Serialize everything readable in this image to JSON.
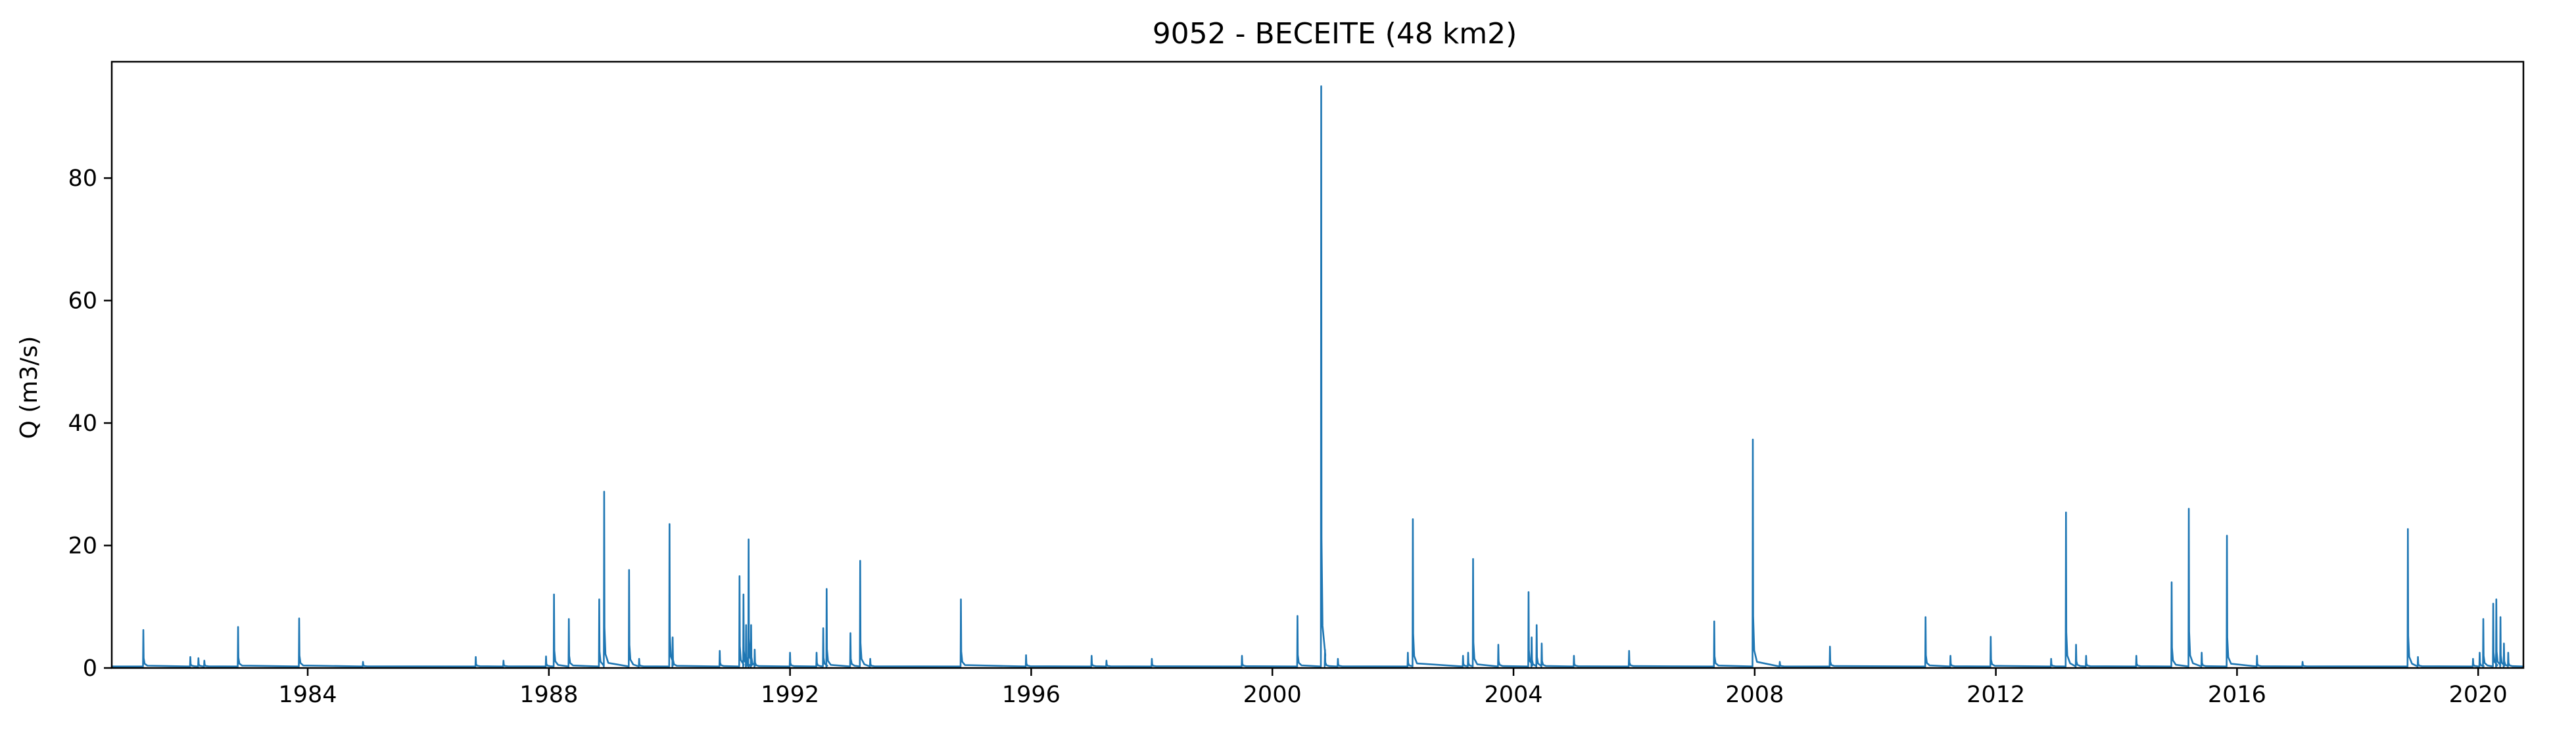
{
  "chart_data": {
    "type": "line",
    "title": "9052 - BECEITE (48 km2)",
    "xlabel": "",
    "ylabel": "Q (m3/s)",
    "xlim": [
      "1980-10-01",
      "2020-10-01"
    ],
    "ylim": [
      0,
      99
    ],
    "grid": false,
    "legend": "none",
    "x_ticks": [
      "1984",
      "1988",
      "1992",
      "1996",
      "2000",
      "2004",
      "2008",
      "2012",
      "2016",
      "2020"
    ],
    "y_ticks": [
      0,
      20,
      40,
      60,
      80
    ],
    "series_color": "#1f77b4",
    "series": [
      {
        "baseflow": 0.25,
        "peaks": [
          [
            "1981-04-10",
            6.2
          ],
          [
            "1982-01-20",
            1.8
          ],
          [
            "1982-03-10",
            1.6
          ],
          [
            "1982-04-15",
            1.2
          ],
          [
            "1982-11-05",
            6.7
          ],
          [
            "1983-11-10",
            8.1
          ],
          [
            "1984-12-01",
            1.0
          ],
          [
            "1986-10-15",
            1.8
          ],
          [
            "1987-04-01",
            1.2
          ],
          [
            "1987-12-15",
            1.9
          ],
          [
            "1988-02-01",
            12.0
          ],
          [
            "1988-05-01",
            8.0
          ],
          [
            "1988-11-01",
            11.2
          ],
          [
            "1988-12-01",
            28.8
          ],
          [
            "1989-05-01",
            16.0
          ],
          [
            "1989-07-01",
            1.5
          ],
          [
            "1990-01-01",
            23.5
          ],
          [
            "1990-01-20",
            5.0
          ],
          [
            "1990-11-01",
            2.8
          ],
          [
            "1991-03-01",
            15.0
          ],
          [
            "1991-03-25",
            12.0
          ],
          [
            "1991-04-10",
            7.0
          ],
          [
            "1991-04-25",
            21.0
          ],
          [
            "1991-05-10",
            7.0
          ],
          [
            "1991-06-01",
            3.0
          ],
          [
            "1992-01-01",
            2.5
          ],
          [
            "1992-06-10",
            2.5
          ],
          [
            "1992-07-20",
            6.5
          ],
          [
            "1992-08-10",
            12.9
          ],
          [
            "1993-01-01",
            5.7
          ],
          [
            "1993-03-01",
            17.5
          ],
          [
            "1993-05-01",
            1.5
          ],
          [
            "1994-11-01",
            11.2
          ],
          [
            "1995-12-01",
            2.1
          ],
          [
            "1997-01-01",
            2.0
          ],
          [
            "1997-04-01",
            1.2
          ],
          [
            "1998-01-01",
            1.5
          ],
          [
            "1999-07-01",
            2.0
          ],
          [
            "2000-06-01",
            8.5
          ],
          [
            "2000-10-23",
            95.0
          ],
          [
            "2000-11-15",
            3.0
          ],
          [
            "2001-02-01",
            1.5
          ],
          [
            "2002-04-01",
            2.5
          ],
          [
            "2002-05-01",
            24.3
          ],
          [
            "2003-03-01",
            2.0
          ],
          [
            "2003-04-01",
            2.5
          ],
          [
            "2003-05-01",
            17.8
          ],
          [
            "2003-10-01",
            3.8
          ],
          [
            "2004-04-01",
            12.4
          ],
          [
            "2004-04-20",
            5.0
          ],
          [
            "2004-05-20",
            7.0
          ],
          [
            "2004-06-20",
            4.0
          ],
          [
            "2005-01-01",
            2.0
          ],
          [
            "2005-12-01",
            2.8
          ],
          [
            "2007-05-01",
            7.6
          ],
          [
            "2007-12-21",
            37.3
          ],
          [
            "2008-06-01",
            1.0
          ],
          [
            "2009-04-01",
            3.5
          ],
          [
            "2010-11-01",
            8.3
          ],
          [
            "2011-04-01",
            2.0
          ],
          [
            "2011-12-01",
            5.1
          ],
          [
            "2012-12-01",
            1.5
          ],
          [
            "2013-03-01",
            25.4
          ],
          [
            "2013-05-01",
            3.8
          ],
          [
            "2013-07-01",
            2.0
          ],
          [
            "2014-05-01",
            2.0
          ],
          [
            "2014-12-01",
            14.0
          ],
          [
            "2015-03-15",
            26.0
          ],
          [
            "2015-06-01",
            2.5
          ],
          [
            "2015-11-01",
            21.6
          ],
          [
            "2016-05-01",
            2.0
          ],
          [
            "2017-02-01",
            1.0
          ],
          [
            "2018-11-01",
            22.7
          ],
          [
            "2019-01-01",
            1.8
          ],
          [
            "2019-12-01",
            1.5
          ],
          [
            "2020-01-10",
            2.5
          ],
          [
            "2020-02-01",
            8.0
          ],
          [
            "2020-04-01",
            10.5
          ],
          [
            "2020-04-20",
            11.2
          ],
          [
            "2020-05-15",
            8.3
          ],
          [
            "2020-06-05",
            4.0
          ],
          [
            "2020-07-01",
            2.5
          ]
        ]
      }
    ]
  }
}
